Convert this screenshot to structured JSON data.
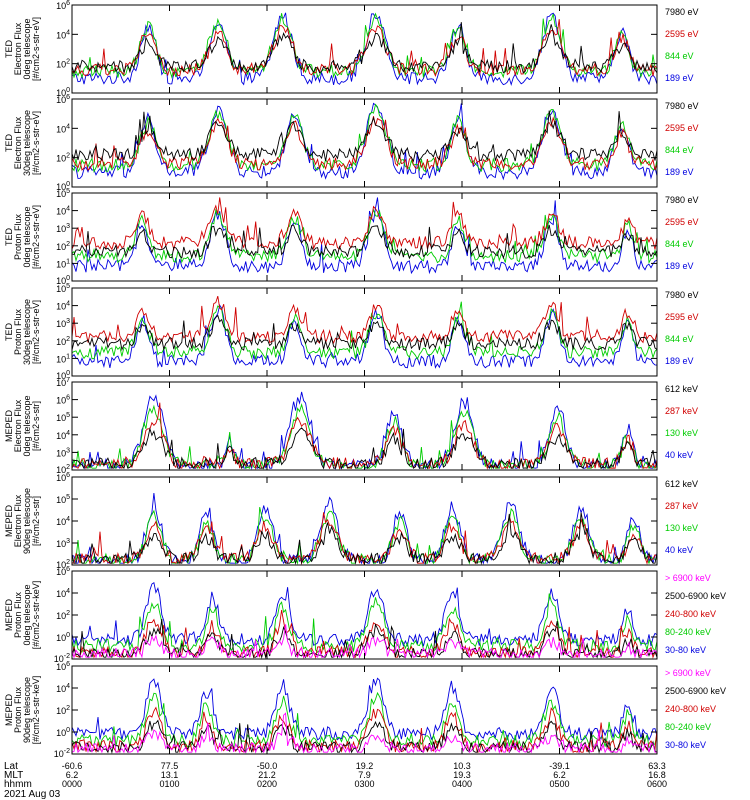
{
  "chart_data": [
    {
      "type": "line",
      "log_scale": true,
      "ylabel": [
        "TED",
        "Electron Flux",
        "0deg telescope",
        "[#/cm2-s-str-eV]"
      ],
      "y_ticks": [
        "10^6",
        "10^4",
        "10^2",
        "10^0"
      ],
      "series": [
        {
          "name": "7980 eV",
          "color": "#000000"
        },
        {
          "name": "2595 eV",
          "color": "#d00000"
        },
        {
          "name": "844 eV",
          "color": "#00cc00"
        },
        {
          "name": "189 eV",
          "color": "#0000e0"
        }
      ],
      "bursts": [
        [
          0.13,
          1.0
        ],
        [
          0.25,
          1.1
        ],
        [
          0.36,
          1.2
        ],
        [
          0.52,
          1.25
        ],
        [
          0.66,
          1.0
        ],
        [
          0.82,
          1.2
        ],
        [
          0.94,
          0.9
        ]
      ],
      "base": [
        1.8,
        1.6,
        1.5,
        1.0
      ]
    },
    {
      "type": "line",
      "log_scale": true,
      "ylabel": [
        "TED",
        "Electron Flux",
        "30deg telescope",
        "[#/cm2-s-str-eV]"
      ],
      "y_ticks": [
        "10^6",
        "10^4",
        "10^2",
        "10^0"
      ],
      "series": [
        {
          "name": "7980 eV",
          "color": "#000000"
        },
        {
          "name": "2595 eV",
          "color": "#d00000"
        },
        {
          "name": "844 eV",
          "color": "#00cc00"
        },
        {
          "name": "189 eV",
          "color": "#0000e0"
        }
      ],
      "bursts": [
        [
          0.13,
          1.0
        ],
        [
          0.25,
          1.2
        ],
        [
          0.38,
          1.1
        ],
        [
          0.52,
          1.3
        ],
        [
          0.66,
          1.0
        ],
        [
          0.82,
          1.2
        ],
        [
          0.94,
          0.9
        ]
      ],
      "base": [
        2.2,
        1.6,
        1.5,
        1.0
      ]
    },
    {
      "type": "line",
      "log_scale": true,
      "ylabel": [
        "TED",
        "Proton Flux",
        "0deg telescope",
        "[#/cm2-s-str-eV]"
      ],
      "y_ticks": [
        "10^5",
        "10^4",
        "10^3",
        "10^2",
        "10^1",
        "10^0"
      ],
      "series": [
        {
          "name": "7980 eV",
          "color": "#000000"
        },
        {
          "name": "2595 eV",
          "color": "#d00000"
        },
        {
          "name": "844 eV",
          "color": "#00cc00"
        },
        {
          "name": "189 eV",
          "color": "#0000e0"
        }
      ],
      "bursts": [
        [
          0.12,
          0.8
        ],
        [
          0.25,
          1.0
        ],
        [
          0.38,
          0.9
        ],
        [
          0.52,
          1.0
        ],
        [
          0.66,
          0.8
        ],
        [
          0.82,
          0.9
        ],
        [
          0.95,
          0.7
        ]
      ],
      "base": [
        2.0,
        2.6,
        1.7,
        1.0
      ]
    },
    {
      "type": "line",
      "log_scale": true,
      "ylabel": [
        "TED",
        "Proton Flux",
        "30deg telescope",
        "[#/cm2-s-str-eV]"
      ],
      "y_ticks": [
        "10^5",
        "10^4",
        "10^3",
        "10^2",
        "10^1",
        "10^0"
      ],
      "series": [
        {
          "name": "7980 eV",
          "color": "#000000"
        },
        {
          "name": "2595 eV",
          "color": "#d00000"
        },
        {
          "name": "844 eV",
          "color": "#00cc00"
        },
        {
          "name": "189 eV",
          "color": "#0000e0"
        }
      ],
      "bursts": [
        [
          0.12,
          0.8
        ],
        [
          0.25,
          1.0
        ],
        [
          0.38,
          0.8
        ],
        [
          0.52,
          0.9
        ],
        [
          0.66,
          0.8
        ],
        [
          0.82,
          0.9
        ],
        [
          0.95,
          0.7
        ]
      ],
      "base": [
        2.2,
        2.7,
        1.6,
        1.0
      ]
    },
    {
      "type": "line",
      "log_scale": true,
      "ylabel": [
        "MEPED",
        "Electron Flux",
        "0deg telescope",
        "[#/cm2-s-str]"
      ],
      "y_ticks": [
        "10^7",
        "10^6",
        "10^5",
        "10^4",
        "10^3",
        "10^2"
      ],
      "series": [
        {
          "name": "612 keV",
          "color": "#000000"
        },
        {
          "name": "287 keV",
          "color": "#d00000"
        },
        {
          "name": "130 keV",
          "color": "#00cc00"
        },
        {
          "name": "40 keV",
          "color": "#0000e0"
        }
      ],
      "bursts": [
        [
          0.14,
          1.3
        ],
        [
          0.27,
          0.5
        ],
        [
          0.39,
          1.3
        ],
        [
          0.55,
          1.0
        ],
        [
          0.67,
          1.2
        ],
        [
          0.83,
          1.1
        ],
        [
          0.95,
          0.7
        ]
      ],
      "base": [
        0.4,
        0.4,
        0.3,
        0.3
      ]
    },
    {
      "type": "line",
      "log_scale": true,
      "ylabel": [
        "MEPED",
        "Electron Flux",
        "90deg telescope",
        "[#/cm2-s-str]"
      ],
      "y_ticks": [
        "10^6",
        "10^5",
        "10^4",
        "10^3",
        "10^2"
      ],
      "series": [
        {
          "name": "612 keV",
          "color": "#000000"
        },
        {
          "name": "287 keV",
          "color": "#d00000"
        },
        {
          "name": "130 keV",
          "color": "#00cc00"
        },
        {
          "name": "40 keV",
          "color": "#0000e0"
        }
      ],
      "bursts": [
        [
          0.14,
          1.0
        ],
        [
          0.23,
          0.9
        ],
        [
          0.33,
          1.0
        ],
        [
          0.44,
          1.1
        ],
        [
          0.56,
          0.9
        ],
        [
          0.65,
          1.0
        ],
        [
          0.75,
          1.1
        ],
        [
          0.87,
          1.0
        ],
        [
          0.96,
          0.8
        ]
      ],
      "base": [
        0.4,
        0.4,
        0.3,
        0.3
      ]
    },
    {
      "type": "line",
      "log_scale": true,
      "ylabel": [
        "MEPED",
        "Proton Flux",
        "0deg telescope",
        "[#/cm2-s-str-keV]"
      ],
      "y_ticks": [
        "10^6",
        "10^4",
        "10^2",
        "10^0",
        "10^-2"
      ],
      "series": [
        {
          "name": "> 6900 keV",
          "color": "#ff00ff"
        },
        {
          "name": "2500-6900 keV",
          "color": "#000000"
        },
        {
          "name": "240-800 keV",
          "color": "#d00000"
        },
        {
          "name": "80-240 keV",
          "color": "#00cc00"
        },
        {
          "name": "30-80 keV",
          "color": "#0000e0"
        }
      ],
      "bursts": [
        [
          0.14,
          1.0
        ],
        [
          0.24,
          0.8
        ],
        [
          0.36,
          0.9
        ],
        [
          0.52,
          1.0
        ],
        [
          0.65,
          0.9
        ],
        [
          0.82,
          0.9
        ],
        [
          0.95,
          0.6
        ]
      ],
      "base": [
        0.3,
        0.3,
        0.4,
        0.9,
        1.3
      ]
    },
    {
      "type": "line",
      "log_scale": true,
      "ylabel": [
        "MEPED",
        "Proton Flux",
        "90deg telescope",
        "[#/cm2-s-str-keV]"
      ],
      "y_ticks": [
        "10^6",
        "10^4",
        "10^2",
        "10^0",
        "10^-2"
      ],
      "series": [
        {
          "name": "> 6900 keV",
          "color": "#ff00ff"
        },
        {
          "name": "2500-6900 keV",
          "color": "#000000"
        },
        {
          "name": "240-800 keV",
          "color": "#d00000"
        },
        {
          "name": "80-240 keV",
          "color": "#00cc00"
        },
        {
          "name": "30-80 keV",
          "color": "#0000e0"
        }
      ],
      "bursts": [
        [
          0.14,
          1.0
        ],
        [
          0.23,
          0.8
        ],
        [
          0.36,
          0.9
        ],
        [
          0.52,
          1.0
        ],
        [
          0.65,
          0.9
        ],
        [
          0.82,
          0.9
        ],
        [
          0.95,
          0.6
        ]
      ],
      "base": [
        0.3,
        0.4,
        0.5,
        0.9,
        1.4
      ]
    }
  ],
  "x_axis": {
    "rows": [
      {
        "label": "Lat",
        "values": [
          "-60.6",
          "77.5",
          "-50.0",
          "19.2",
          "10.3",
          "-39.1",
          "63.3"
        ]
      },
      {
        "label": "MLT",
        "values": [
          "6.2",
          "13.1",
          "21.2",
          "7.9",
          "19.3",
          "6.2",
          "16.8"
        ]
      },
      {
        "label": "hhmm",
        "values": [
          "0000",
          "0100",
          "0200",
          "0300",
          "0400",
          "0500",
          "0600"
        ]
      }
    ],
    "date": "2021 Aug 03"
  }
}
